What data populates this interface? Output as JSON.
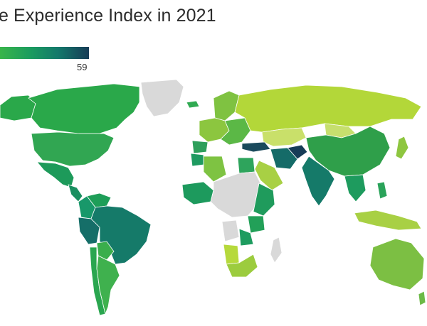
{
  "title": "e Experience Index in 2021",
  "subtitle_fragment": "",
  "legend": {
    "max_label": "59",
    "color_low": "#39b54a",
    "color_high": "#163c57"
  },
  "map": {
    "no_data_color": "#d9d9d9",
    "regions": [
      {
        "name": "Canada",
        "color": "#2aa84a"
      },
      {
        "name": "Alaska",
        "color": "#2aa84a"
      },
      {
        "name": "Greenland",
        "color": "#d9d9d9"
      },
      {
        "name": "United States",
        "color": "#31a652"
      },
      {
        "name": "Mexico",
        "color": "#1d9a5a"
      },
      {
        "name": "Central America",
        "color": "#1a8f60"
      },
      {
        "name": "Colombia",
        "color": "#18986a"
      },
      {
        "name": "Venezuela",
        "color": "#1e9e58"
      },
      {
        "name": "Brazil",
        "color": "#157a69"
      },
      {
        "name": "Peru",
        "color": "#156e68"
      },
      {
        "name": "Bolivia",
        "color": "#3aae4c"
      },
      {
        "name": "Argentina",
        "color": "#3fb14e"
      },
      {
        "name": "Chile",
        "color": "#2aa64f"
      },
      {
        "name": "Iceland",
        "color": "#30aa52"
      },
      {
        "name": "Western Europe",
        "color": "#8cc63f"
      },
      {
        "name": "Spain",
        "color": "#2e9f5b"
      },
      {
        "name": "Scandinavia",
        "color": "#7fc241"
      },
      {
        "name": "Eastern Europe",
        "color": "#5bb846"
      },
      {
        "name": "Russia",
        "color": "#b3d739"
      },
      {
        "name": "Kazakhstan",
        "color": "#c9e06a"
      },
      {
        "name": "Mongolia",
        "color": "#c6df6e"
      },
      {
        "name": "China",
        "color": "#2f9f4a"
      },
      {
        "name": "Turkey",
        "color": "#1a4a5c"
      },
      {
        "name": "Iran",
        "color": "#156b68"
      },
      {
        "name": "Afghanistan",
        "color": "#163c57"
      },
      {
        "name": "Saudi Arabia",
        "color": "#a8d044"
      },
      {
        "name": "Egypt",
        "color": "#2ea45c"
      },
      {
        "name": "Algeria",
        "color": "#7ec342"
      },
      {
        "name": "Morocco",
        "color": "#1e9a60"
      },
      {
        "name": "India",
        "color": "#157a69"
      },
      {
        "name": "Southeast Asia",
        "color": "#1e9b5e"
      },
      {
        "name": "Japan",
        "color": "#8ec640"
      },
      {
        "name": "Indonesia",
        "color": "#a8d044"
      },
      {
        "name": "Philippines",
        "color": "#2aa35a"
      },
      {
        "name": "Australia",
        "color": "#7cbf43"
      },
      {
        "name": "New Zealand",
        "color": "#6cba47"
      },
      {
        "name": "West Africa",
        "color": "#1d9a5d"
      },
      {
        "name": "Central Africa",
        "color": "#d9d9d9"
      },
      {
        "name": "East Africa",
        "color": "#1f9b5c"
      },
      {
        "name": "Tanzania",
        "color": "#22a058"
      },
      {
        "name": "Angola",
        "color": "#d9d9d9"
      },
      {
        "name": "Zambia",
        "color": "#1e9c5f"
      },
      {
        "name": "Namibia",
        "color": "#b6d93c"
      },
      {
        "name": "South Africa",
        "color": "#9ccc3e"
      },
      {
        "name": "Madagascar",
        "color": "#d9d9d9"
      }
    ]
  }
}
